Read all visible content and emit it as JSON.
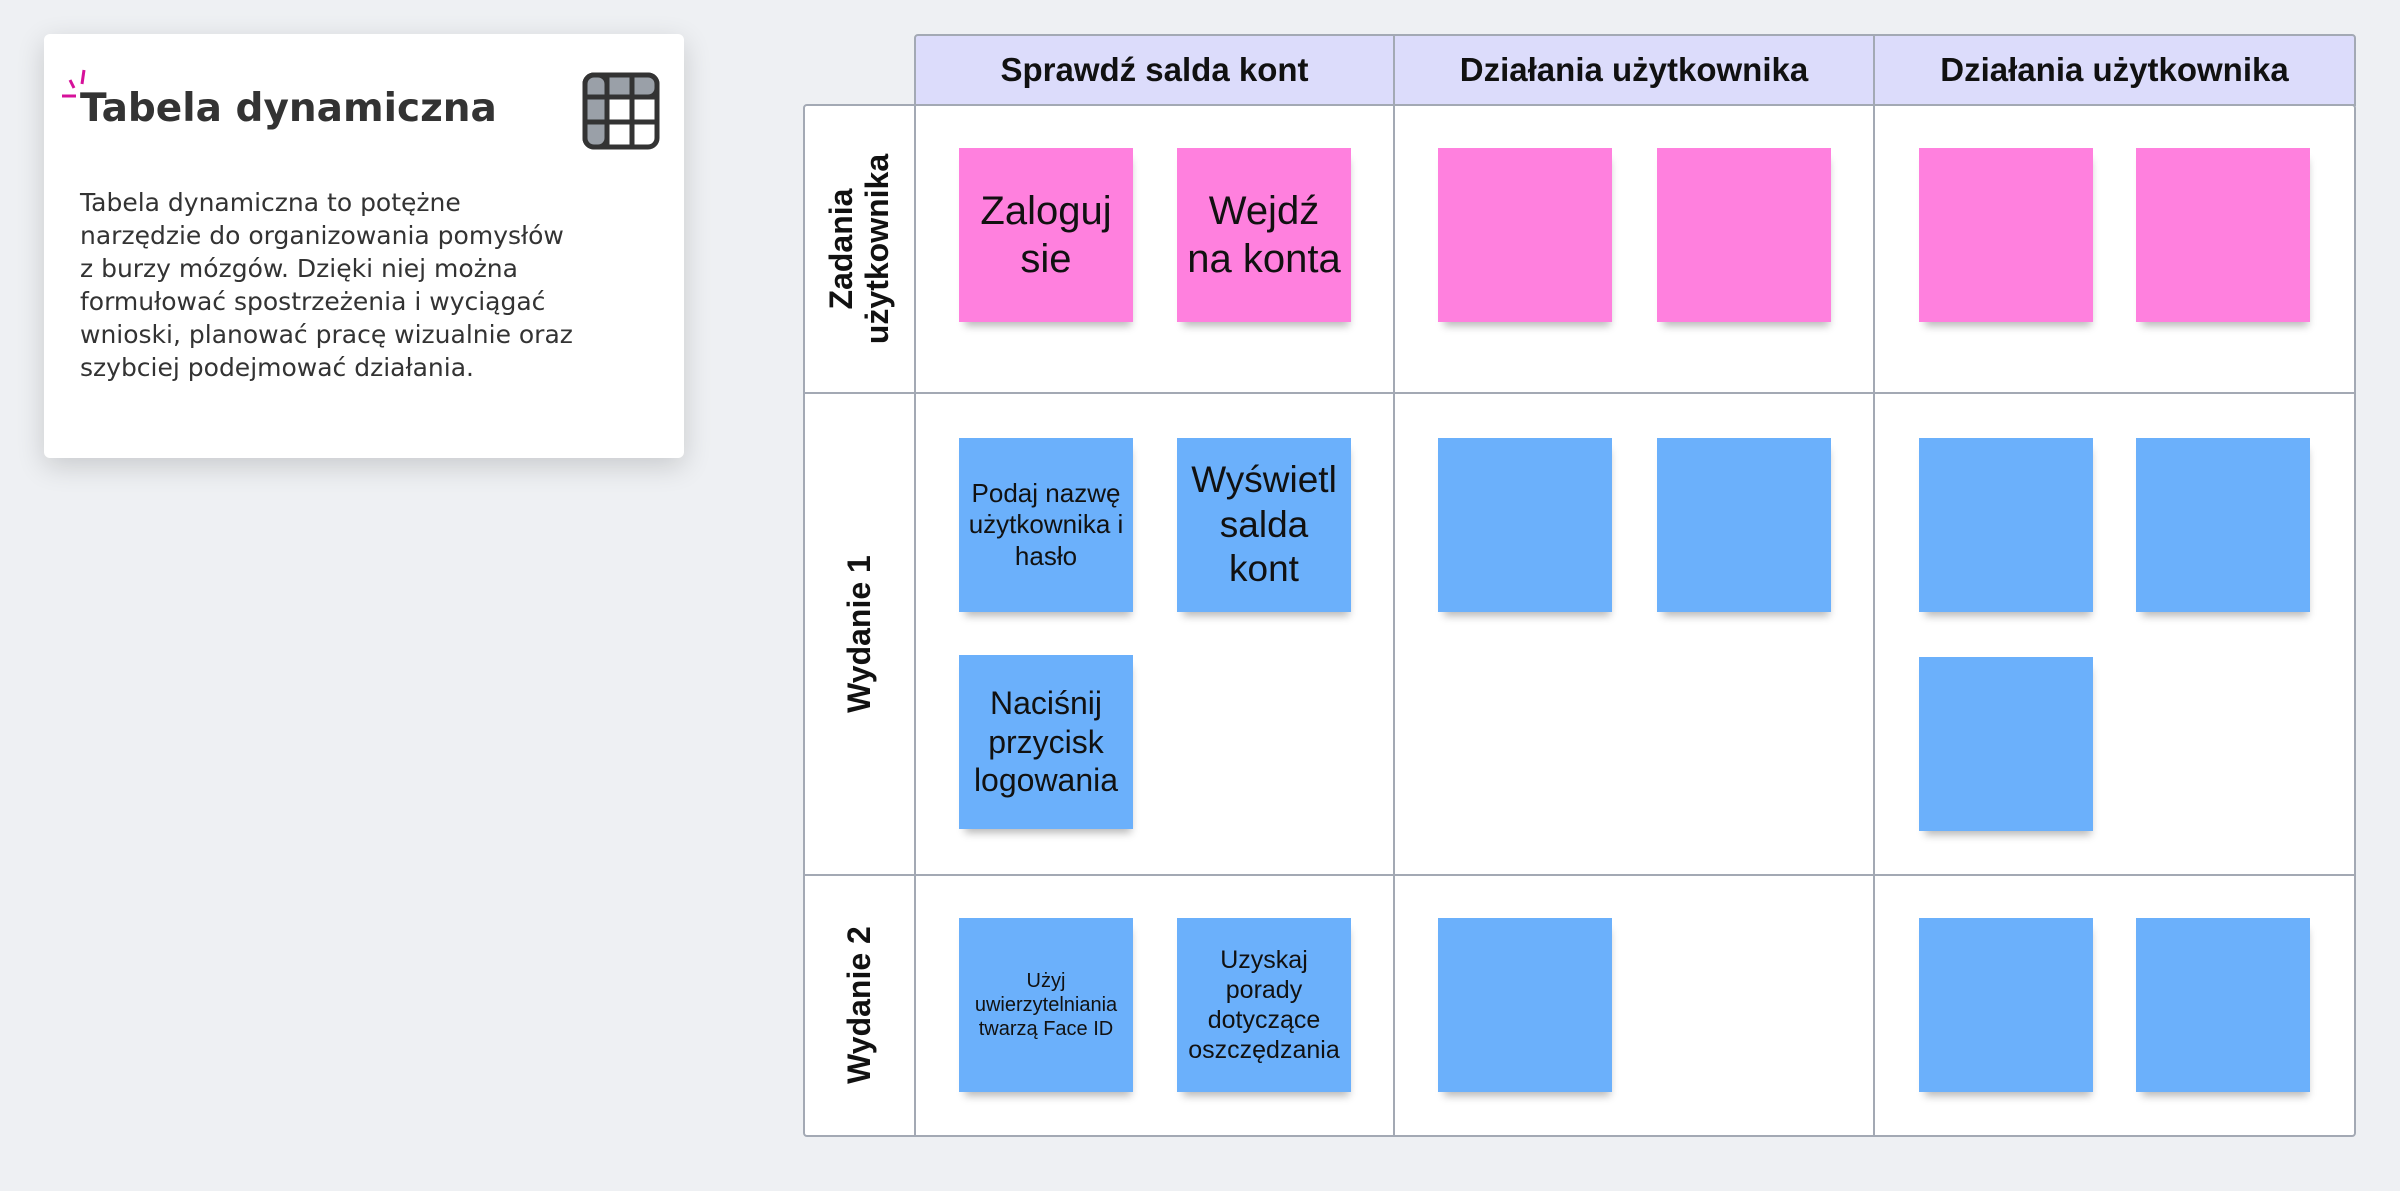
{
  "card": {
    "title": "Tabela dynamiczna",
    "description": "Tabela dynamiczna to potężne narzędzie do organizowania pomysłów z burzy mózgów. Dzięki niej można formułować spostrzeżenia i wyciągać wnioski, planować pracę wizualnie oraz szybciej podejmować działania."
  },
  "table": {
    "columns": [
      "Sprawdź salda kont",
      "Działania użytkownika",
      "Działania użytkownika"
    ],
    "rows": [
      "Zadania użytkownika",
      "Wydanie 1",
      "Wydanie 2"
    ],
    "notes": [
      "Zaloguj sie",
      "Wejdź na konta",
      "Podaj nazwę użytkownika i hasło",
      "Wyświetl salda kont",
      "Naciśnij przycisk logowania",
      "Użyj uwierzytelniania twarzą Face ID",
      "Uzyskaj porady dotyczące oszczędzania"
    ]
  }
}
